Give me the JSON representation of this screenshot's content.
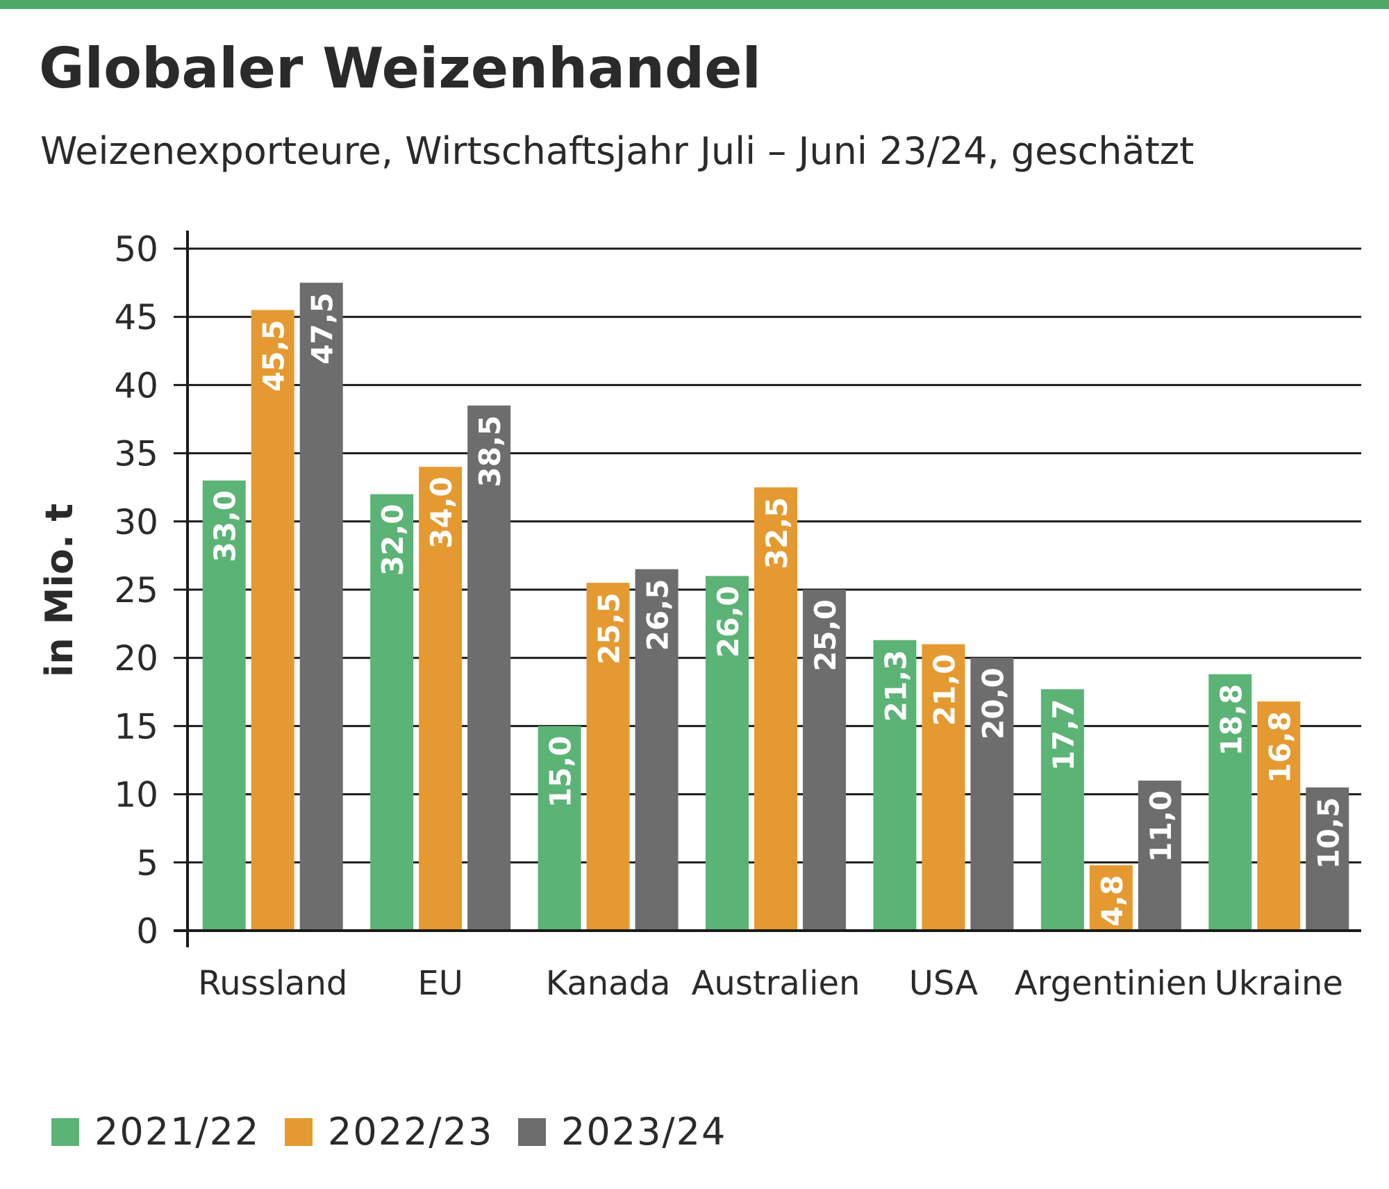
{
  "chart_data": {
    "type": "bar",
    "title": "Globaler Weizenhandel",
    "subtitle": "Weizenexporteure, Wirtschaftsjahr Juli – Juni 23/24, geschätzt",
    "ylabel": "in Mio. t",
    "xlabel": "",
    "ylim": [
      0,
      50
    ],
    "yticks": [
      "0",
      "5",
      "10",
      "15",
      "20",
      "25",
      "30",
      "35",
      "40",
      "45",
      "50"
    ],
    "grid": true,
    "legend_position": "bottom-left",
    "categories": [
      "Russland",
      "EU",
      "Kanada",
      "Australien",
      "USA",
      "Argentinien",
      "Ukraine"
    ],
    "series": [
      {
        "name": "2021/22",
        "color": "#5cb376",
        "values": [
          33.0,
          32.0,
          15.0,
          26.0,
          21.3,
          17.7,
          18.8
        ],
        "labels": [
          "33,0",
          "32,0",
          "15,0",
          "26,0",
          "21,3",
          "17,7",
          "18,8"
        ]
      },
      {
        "name": "2022/23",
        "color": "#e49a30",
        "values": [
          45.5,
          34.0,
          25.5,
          32.5,
          21.0,
          4.8,
          16.8
        ],
        "labels": [
          "45,5",
          "34,0",
          "25,5",
          "32,5",
          "21,0",
          "4,8",
          "16,8"
        ]
      },
      {
        "name": "2023/24",
        "color": "#6d6d6d",
        "values": [
          47.5,
          38.5,
          26.5,
          25.0,
          20.0,
          11.0,
          10.5
        ],
        "labels": [
          "47,5",
          "38,5",
          "26,5",
          "25,0",
          "20,0",
          "11,0",
          "10,5"
        ]
      }
    ]
  },
  "colors": {
    "accent_bar": "#4daa66",
    "text": "#2a2a2a",
    "grid": "#1a1a1a"
  }
}
